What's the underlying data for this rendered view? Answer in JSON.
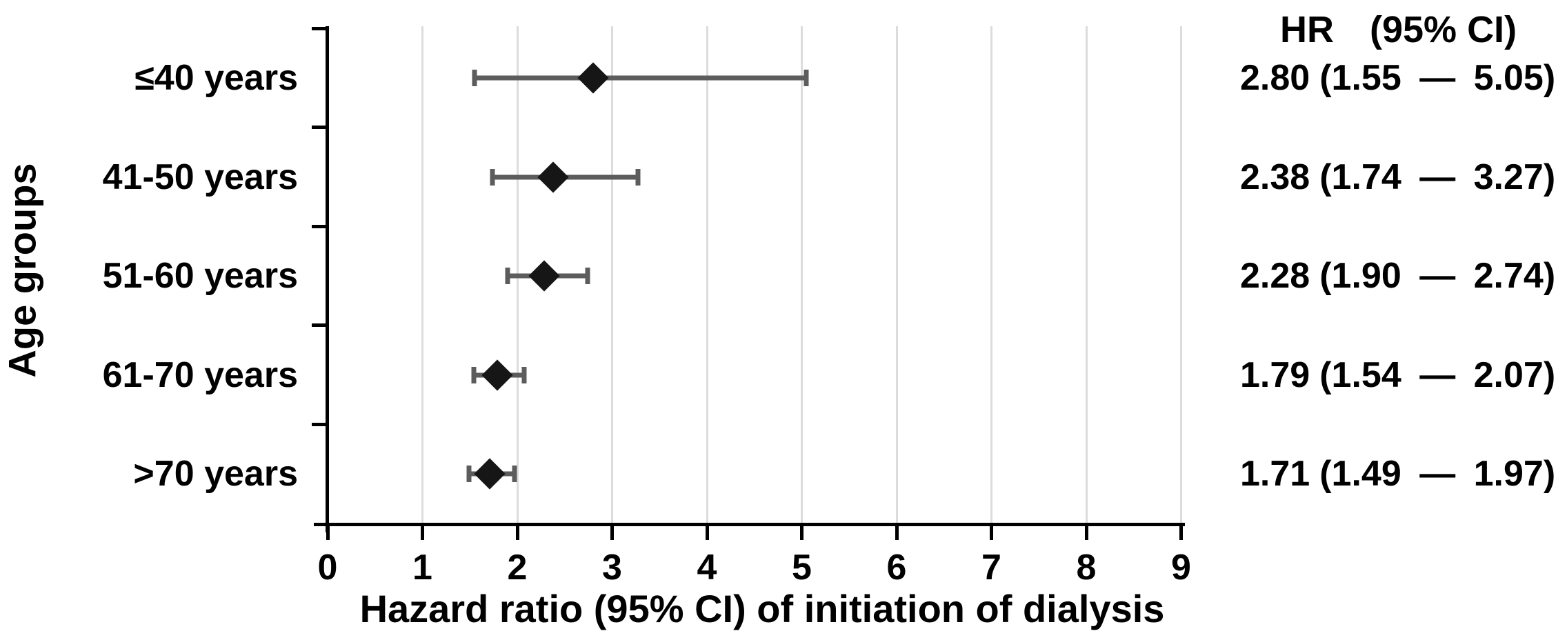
{
  "chart_data": {
    "type": "scatter",
    "subtype": "forest-plot",
    "title": "",
    "xlabel": "Hazard ratio (95% CI) of initiation of dialysis",
    "ylabel": "Age groups",
    "xlim": [
      0,
      9
    ],
    "xticks": [
      "0",
      "1",
      "2",
      "3",
      "4",
      "5",
      "6",
      "7",
      "8",
      "9"
    ],
    "grid": "vertical gridlines at integers 1-9, light gray",
    "legend_position": "none",
    "marker": "black diamond",
    "error_bars": "dark gray horizontal 95% CI with end caps",
    "rows": [
      {
        "label": "≤40 years",
        "hr": 2.8,
        "ci_low": 1.55,
        "ci_high": 5.05,
        "hr_text": "2.80",
        "ci_text": "(1.55 — 5.05)"
      },
      {
        "label": "41-50 years",
        "hr": 2.38,
        "ci_low": 1.74,
        "ci_high": 3.27,
        "hr_text": "2.38",
        "ci_text": "(1.74 — 3.27)"
      },
      {
        "label": "51-60 years",
        "hr": 2.28,
        "ci_low": 1.9,
        "ci_high": 2.74,
        "hr_text": "2.28",
        "ci_text": "(1.90 — 2.74)"
      },
      {
        "label": "61-70 years",
        "hr": 1.79,
        "ci_low": 1.54,
        "ci_high": 2.07,
        "hr_text": "1.79",
        "ci_text": "(1.54 — 2.07)"
      },
      {
        "label": ">70 years",
        "hr": 1.71,
        "ci_low": 1.49,
        "ci_high": 1.97,
        "hr_text": "1.71",
        "ci_text": "(1.49 — 1.97)"
      }
    ],
    "right_column": {
      "header_hr": "HR",
      "header_ci": "(95% CI)"
    },
    "colors": {
      "marker": "#161616",
      "error_bar": "#5c5c5c",
      "gridline": "#dcdcdc",
      "axis": "#000000",
      "text": "#000000",
      "background": "#ffffff"
    }
  }
}
